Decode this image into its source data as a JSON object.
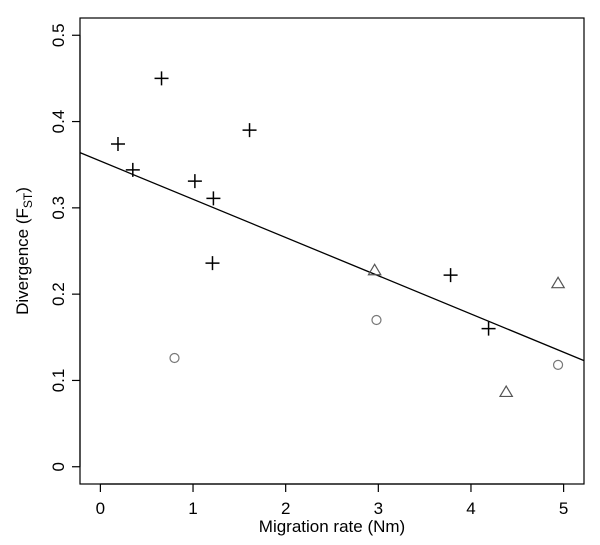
{
  "chart_data": {
    "type": "scatter",
    "xlabel": "Migration rate (Nm)",
    "ylabel": {
      "main": "Divergence (F",
      "sub": "ST",
      "close": ")"
    },
    "xlim": [
      -0.22,
      5.22
    ],
    "ylim": [
      -0.02,
      0.52
    ],
    "x_ticks": [
      0,
      1,
      2,
      3,
      4,
      5
    ],
    "y_ticks": [
      0,
      0.1,
      0.2,
      0.3,
      0.4,
      0.5
    ],
    "x_tick_labels": [
      "0",
      "1",
      "2",
      "3",
      "4",
      "5"
    ],
    "y_tick_labels": [
      "0",
      "0.1",
      "0.2",
      "0.3",
      "0.4",
      "0.5"
    ],
    "grid": false,
    "series": [
      {
        "marker": "plus",
        "color": "#000000",
        "points": [
          {
            "x": 0.19,
            "y": 0.374
          },
          {
            "x": 0.35,
            "y": 0.344
          },
          {
            "x": 0.66,
            "y": 0.45
          },
          {
            "x": 1.02,
            "y": 0.331
          },
          {
            "x": 1.22,
            "y": 0.311
          },
          {
            "x": 1.21,
            "y": 0.236
          },
          {
            "x": 1.61,
            "y": 0.39
          },
          {
            "x": 3.78,
            "y": 0.222
          },
          {
            "x": 4.19,
            "y": 0.16
          }
        ]
      },
      {
        "marker": "triangle",
        "color": "#555555",
        "points": [
          {
            "x": 2.96,
            "y": 0.227
          },
          {
            "x": 4.38,
            "y": 0.086
          },
          {
            "x": 4.94,
            "y": 0.212
          }
        ]
      },
      {
        "marker": "circle",
        "color": "#777777",
        "points": [
          {
            "x": 0.8,
            "y": 0.126
          },
          {
            "x": 2.98,
            "y": 0.17
          },
          {
            "x": 4.94,
            "y": 0.118
          }
        ]
      }
    ],
    "fit_line": {
      "x": [
        -0.22,
        5.22
      ],
      "y": [
        0.364,
        0.123
      ]
    }
  }
}
